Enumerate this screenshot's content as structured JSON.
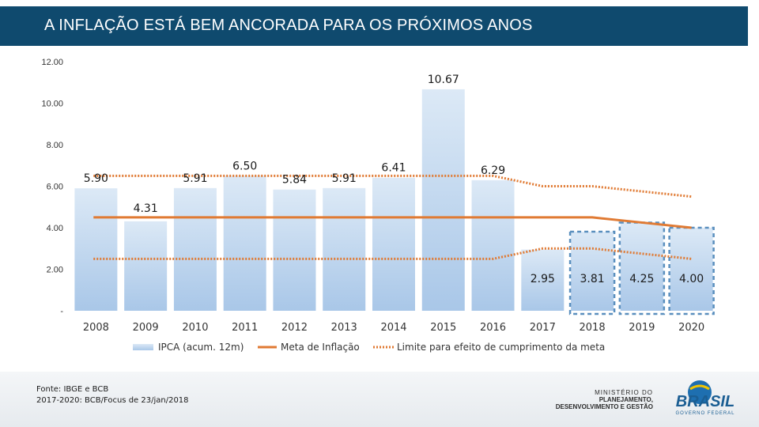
{
  "header": {
    "title": "A INFLAÇÃO ESTÁ BEM ANCORADA PARA OS PRÓXIMOS ANOS"
  },
  "chart_data": {
    "type": "bar",
    "categories": [
      "2008",
      "2009",
      "2010",
      "2011",
      "2012",
      "2013",
      "2014",
      "2015",
      "2016",
      "2017",
      "2018",
      "2019",
      "2020"
    ],
    "series": [
      {
        "name": "IPCA (acum. 12m)",
        "type": "bar",
        "values": [
          5.9,
          4.31,
          5.91,
          6.5,
          5.84,
          5.91,
          6.41,
          10.67,
          6.29,
          2.95,
          3.81,
          4.25,
          4.0
        ],
        "labels": [
          "5.90",
          "4.31",
          "5.91",
          "6.50",
          "5.84",
          "5.91",
          "6.41",
          "10.67",
          "6.29",
          "2.95",
          "3.81",
          "4.25",
          "4.00"
        ],
        "projected_from": "2018"
      },
      {
        "name": "Meta de Inflação",
        "type": "line",
        "values": [
          4.5,
          4.5,
          4.5,
          4.5,
          4.5,
          4.5,
          4.5,
          4.5,
          4.5,
          4.5,
          4.5,
          4.25,
          4.0
        ]
      },
      {
        "name": "Limite para efeito de cumprimento da meta",
        "type": "dotted-band",
        "upper": [
          6.5,
          6.5,
          6.5,
          6.5,
          6.5,
          6.5,
          6.5,
          6.5,
          6.5,
          6.0,
          6.0,
          5.75,
          5.5
        ],
        "lower": [
          2.5,
          2.5,
          2.5,
          2.5,
          2.5,
          2.5,
          2.5,
          2.5,
          2.5,
          3.0,
          3.0,
          2.75,
          2.5
        ]
      }
    ],
    "yticks": [
      "12.00",
      "10.00",
      "8.00",
      "6.00",
      "4.00",
      "2.00",
      "-"
    ],
    "ytick_values": [
      12,
      10,
      8,
      6,
      4,
      2,
      0
    ],
    "ylim": [
      0,
      12
    ],
    "legend": {
      "position": "bottom",
      "items": [
        "IPCA (acum. 12m)",
        "Meta de Inflação",
        "Limite para efeito de cumprimento da meta"
      ]
    },
    "colors": {
      "bar_top": "#dce9f6",
      "bar_bottom": "#a9c7e8",
      "projection_border": "#5a8fbe",
      "target": "#e07a33",
      "limit": "#e07a33"
    }
  },
  "footer": {
    "source_line1": "Fonte: IBGE e BCB",
    "source_line2": "2017-2020: BCB/Focus de 23/jan/2018",
    "ministry_line1": "MINISTÉRIO DO",
    "ministry_line2": "PLANEJAMENTO,",
    "ministry_line3": "DESENVOLVIMENTO E GESTÃO",
    "brand": "BRASIL",
    "brand_sub": "GOVERNO FEDERAL"
  }
}
